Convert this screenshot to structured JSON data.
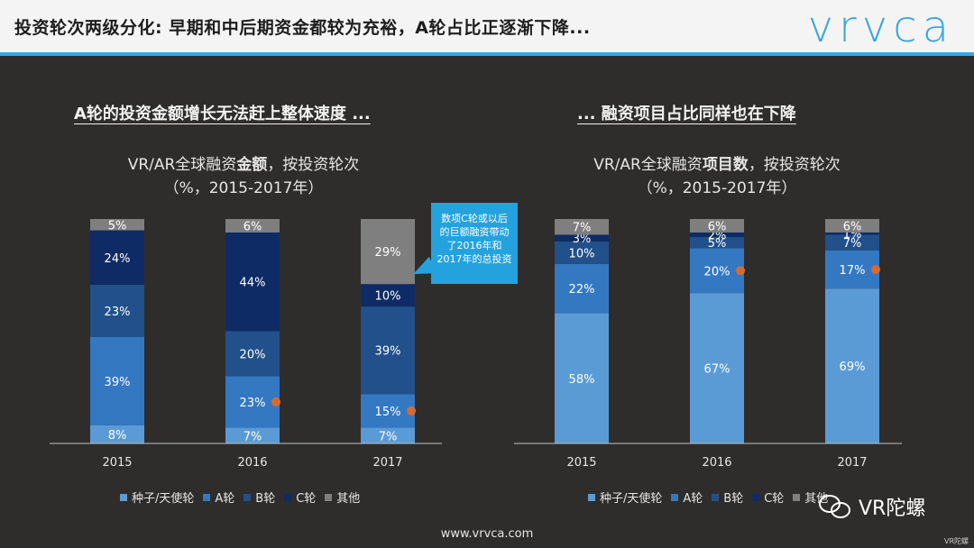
{
  "header": {
    "title": "投资轮次两级分化: 早期和中后期资金都较为充裕，A轮占比正逐渐下降...",
    "logo": "vrvca"
  },
  "left": {
    "subtitle": "A轮的投资金额增长无法赶上整体速度 ...",
    "title_line1_pre": "VR/AR全球融资",
    "title_line1_bold": "金额",
    "title_line1_post": "，按投资轮次",
    "title_line2": "（%，2015-2017年）"
  },
  "right": {
    "subtitle": "... 融资项目占比同样也在下降",
    "title_line1_pre": "VR/AR全球融资",
    "title_line1_bold": "项目数",
    "title_line1_post": "，按投资轮次",
    "title_line2": "（%，2015-2017年）"
  },
  "callout": {
    "text": "数项C轮或以后的巨额融资带动了2016年和2017年的总投资"
  },
  "colors": {
    "seed": "#5b9bd5",
    "a": "#3478c2",
    "b": "#21508a",
    "c": "#0f2b66",
    "other": "#7f7f7f",
    "accent_dot": "#d86a2f"
  },
  "chart_data": [
    {
      "type": "bar",
      "stacked": true,
      "categories": [
        "2015",
        "2016",
        "2017"
      ],
      "series": [
        {
          "name": "种子/天使轮",
          "values": [
            8,
            7,
            7
          ]
        },
        {
          "name": "A轮",
          "values": [
            39,
            23,
            15
          ]
        },
        {
          "name": "B轮",
          "values": [
            23,
            20,
            39
          ]
        },
        {
          "name": "C轮",
          "values": [
            24,
            44,
            10
          ]
        },
        {
          "name": "其他",
          "values": [
            5,
            6,
            29
          ]
        }
      ],
      "highlight": {
        "series": "A轮",
        "categories": [
          "2016",
          "2017"
        ]
      },
      "legend": [
        "种子/天使轮",
        "A轮",
        "B轮",
        "C轮",
        "其他"
      ]
    },
    {
      "type": "bar",
      "stacked": true,
      "categories": [
        "2015",
        "2016",
        "2017"
      ],
      "series": [
        {
          "name": "种子/天使轮",
          "values": [
            58,
            67,
            69
          ]
        },
        {
          "name": "A轮",
          "values": [
            22,
            20,
            17
          ]
        },
        {
          "name": "B轮",
          "values": [
            10,
            5,
            7
          ]
        },
        {
          "name": "C轮",
          "values": [
            3,
            2,
            1
          ]
        },
        {
          "name": "其他",
          "values": [
            7,
            6,
            6
          ]
        }
      ],
      "highlight": {
        "series": "A轮",
        "categories": [
          "2016",
          "2017"
        ]
      },
      "legend": [
        "种子/天使轮",
        "A轮",
        "B轮",
        "C轮",
        "其他"
      ]
    }
  ],
  "footer": {
    "url": "www.vrvca.com",
    "watermark": "VR陀螺",
    "stamp": "VR陀螺"
  }
}
